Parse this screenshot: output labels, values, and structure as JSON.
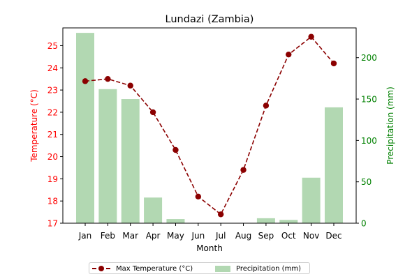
{
  "chart_data": {
    "type": "bar+line",
    "title": "Lundazi (Zambia)",
    "xlabel": "Month",
    "ylabel_left": "Temperature (°C)",
    "ylabel_right": "Precipitation (mm)",
    "categories": [
      "Jan",
      "Feb",
      "Mar",
      "Apr",
      "May",
      "Jun",
      "Jul",
      "Aug",
      "Sep",
      "Oct",
      "Nov",
      "Dec"
    ],
    "ylim_left": [
      17,
      25.8
    ],
    "yticks_left": [
      17,
      18,
      19,
      20,
      21,
      22,
      23,
      24,
      25
    ],
    "ylim_right": [
      0,
      236
    ],
    "yticks_right": [
      0,
      50,
      100,
      150,
      200
    ],
    "series": [
      {
        "name": "Max Temperature (°C)",
        "type": "line",
        "axis": "left",
        "color": "#8b0000",
        "values": [
          23.4,
          23.5,
          23.2,
          22.0,
          20.3,
          18.2,
          17.4,
          19.4,
          22.3,
          24.6,
          25.4,
          24.2
        ]
      },
      {
        "name": "Precipitation (mm)",
        "type": "bar",
        "axis": "right",
        "color": "#b2d8b2",
        "values": [
          230,
          162,
          150,
          31,
          5,
          0,
          0,
          0,
          6,
          4,
          55,
          140
        ]
      }
    ],
    "left_axis_color": "#ff0000",
    "right_axis_color": "#008000",
    "legend_position": "bottom-center"
  }
}
